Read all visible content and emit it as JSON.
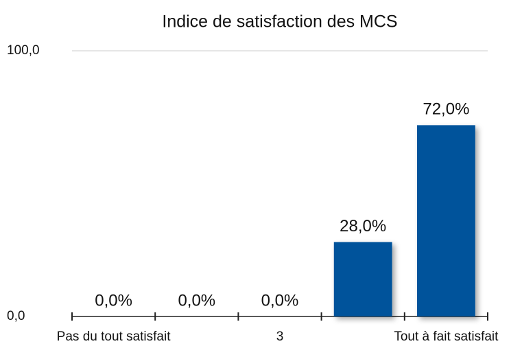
{
  "chart_data": {
    "type": "bar",
    "title": "Indice de satisfaction des MCS",
    "categories": [
      "Pas du tout satisfait",
      null,
      "3",
      null,
      "Tout à fait satisfait"
    ],
    "values": [
      0,
      0,
      0,
      28,
      72
    ],
    "value_labels": [
      "0,0%",
      "0,0%",
      "0,0%",
      "28,0%",
      "72,0%"
    ],
    "color": "#00539b",
    "ylim": [
      0,
      100
    ],
    "yticks": [
      {
        "value": 0,
        "label": "0,0"
      },
      {
        "value": 100,
        "label": "100,0"
      }
    ],
    "grid": true
  }
}
